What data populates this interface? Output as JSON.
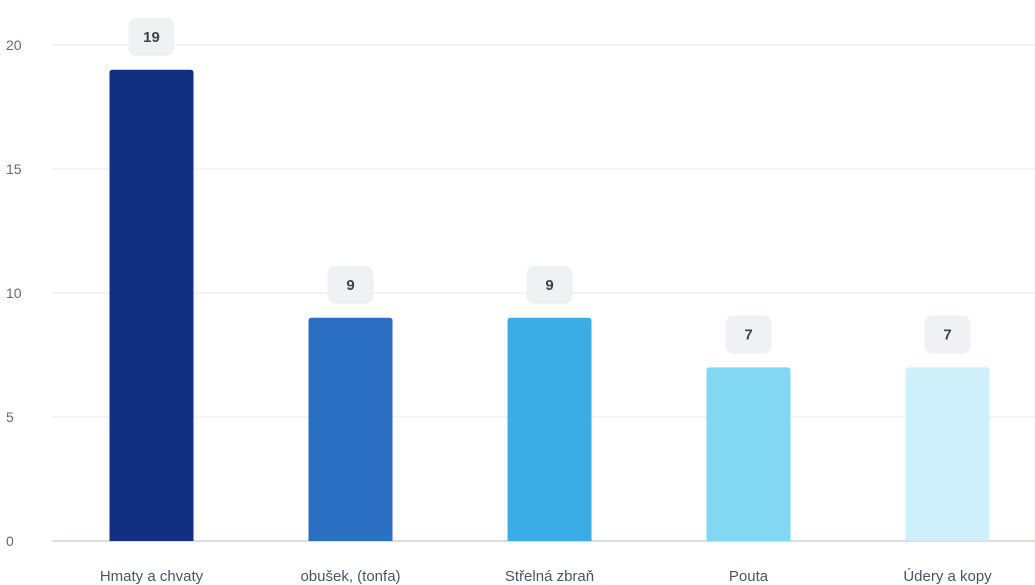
{
  "chart_data": {
    "type": "bar",
    "title": "",
    "xlabel": "",
    "ylabel": "",
    "categories": [
      "Hmaty a chvaty",
      "obušek, (tonfa)",
      "Střelná zbraň",
      "Pouta",
      "Údery a kopy"
    ],
    "values": [
      19,
      9,
      9,
      7,
      7
    ],
    "colors": [
      "#11307f",
      "#2b6fc2",
      "#3aade6",
      "#82d7f2",
      "#cdf0fa"
    ],
    "ylim": [
      0,
      20
    ],
    "yticks": [
      0,
      5,
      10,
      15,
      20
    ],
    "grid": true,
    "data_labels": [
      "19",
      "9",
      "9",
      "7",
      "7"
    ],
    "legend": "none"
  }
}
